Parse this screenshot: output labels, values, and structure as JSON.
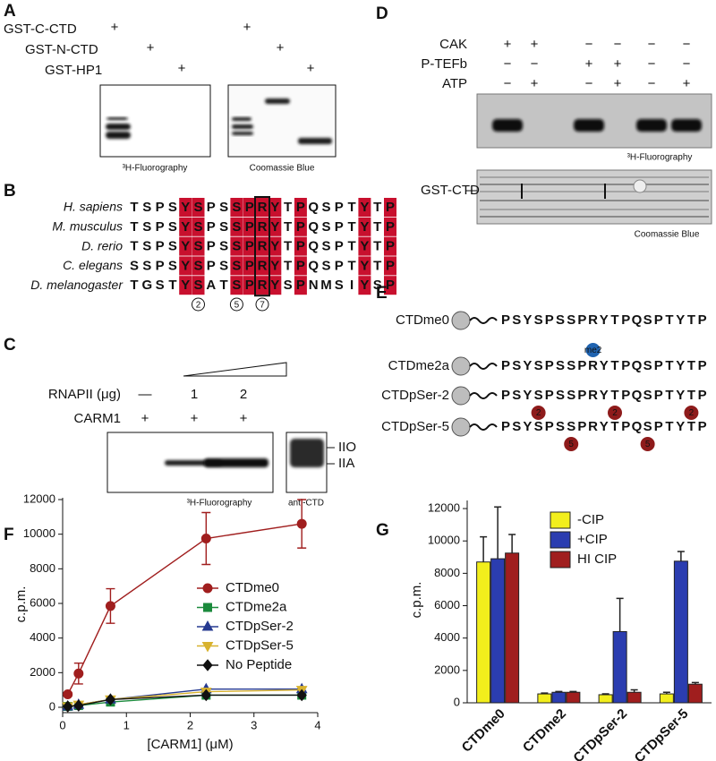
{
  "panel_a": {
    "label": "A",
    "rows": [
      "GST-C-CTD",
      "GST-N-CTD",
      "GST-HP1"
    ],
    "mark": "+",
    "captions": [
      "³H-Fluorography",
      "Coomassie Blue"
    ]
  },
  "panel_b": {
    "label": "B",
    "species": [
      "H. sapiens",
      "M. musculus",
      "D. rerio",
      "C. elegans",
      "D. melanogaster"
    ],
    "sequences": [
      "TSPSYSPSSPRYTPQSPTYTP",
      "TSPSYSPSSPRYTPQSPTYTP",
      "TSPSYSPSSPRYTPQSPTYTP",
      "SSPSYSPSSPRYTPQSPTYTP",
      "TGSTYSATSPRYSPNMSIYSP"
    ],
    "positions": [
      "2",
      "5",
      "7"
    ]
  },
  "panel_c": {
    "label": "C",
    "rows": [
      {
        "name": "RNAPII (μg)",
        "cells": [
          "—",
          "1",
          "2"
        ]
      },
      {
        "name": "CARM1",
        "cells": [
          "+",
          "+",
          "+"
        ]
      }
    ],
    "bands": [
      "IIO",
      "IIA"
    ],
    "captions": [
      "³H-Fluorography",
      "anti-CTD"
    ]
  },
  "panel_d": {
    "label": "D",
    "rows": [
      {
        "name": "CAK",
        "cells": [
          "+",
          "+",
          "−",
          "−",
          "−",
          "−"
        ]
      },
      {
        "name": "P-TEFb",
        "cells": [
          "−",
          "−",
          "+",
          "+",
          "−",
          "−"
        ]
      },
      {
        "name": "ATP",
        "cells": [
          "−",
          "+",
          "−",
          "+",
          "−",
          "+"
        ]
      }
    ],
    "band": "GST-CTD",
    "captions": [
      "³H-Fluorography",
      "Coomassie Blue"
    ]
  },
  "panel_e": {
    "label": "E",
    "constructs": [
      {
        "name": "CTDme0",
        "sequence": "PSYSPSSPRYTPQSPTYTP"
      },
      {
        "name": "CTDme2a",
        "sequence": "PSYSPSSPRYTPQSPTYTP",
        "marks": [
          "me2"
        ]
      },
      {
        "name": "CTDpSer-2",
        "sequence": "PSYSPSSPRYTPQSPTYTP",
        "marks": [
          "2",
          "2",
          "2"
        ]
      },
      {
        "name": "CTDpSer-5",
        "sequence": "PSYSPSSPRYTPQSPTYTP",
        "marks": [
          "5",
          "5"
        ]
      }
    ]
  },
  "chart_data": [
    {
      "type": "line",
      "panel_label": "F",
      "x_label": "[CARM1] (μM)",
      "y_label": "c.p.m.",
      "x": [
        0.08,
        0.25,
        0.75,
        2.25,
        3.75
      ],
      "xlim": [
        0,
        4
      ],
      "xticks": [
        0,
        1,
        2,
        3,
        4
      ],
      "ylim": [
        0,
        12000
      ],
      "yticks": [
        0,
        2000,
        4000,
        6000,
        8000,
        10000,
        12000
      ],
      "series": [
        {
          "name": "CTDme0",
          "color": "#a01e1e",
          "marker": "circle",
          "values": [
            750,
            1950,
            5850,
            9750,
            10600
          ],
          "errors": [
            100,
            600,
            1000,
            1500,
            1400
          ]
        },
        {
          "name": "CTDme2a",
          "color": "#1b8a3c",
          "marker": "square",
          "values": [
            50,
            100,
            300,
            700,
            700
          ]
        },
        {
          "name": "CTDpSer-2",
          "color": "#263a91",
          "marker": "triangle",
          "values": [
            50,
            150,
            450,
            1050,
            1050
          ]
        },
        {
          "name": "CTDpSer-5",
          "color": "#d8b22e",
          "marker": "triangle-down",
          "values": [
            50,
            150,
            450,
            900,
            1000
          ]
        },
        {
          "name": "No Peptide",
          "color": "#111111",
          "marker": "diamond",
          "values": [
            50,
            100,
            450,
            700,
            700
          ]
        }
      ]
    },
    {
      "type": "bar",
      "panel_label": "G",
      "y_label": "c.p.m.",
      "categories": [
        "CTDme0",
        "CTDme2",
        "CTDpSer-2",
        "CTDpSer-5"
      ],
      "ylim": [
        0,
        12500
      ],
      "yticks": [
        0,
        2000,
        4000,
        6000,
        8000,
        10000,
        12000
      ],
      "series": [
        {
          "name": "-CIP",
          "color": "#f2ee1c",
          "values": [
            8700,
            550,
            500,
            550
          ],
          "errors": [
            1550,
            50,
            50,
            100
          ]
        },
        {
          "name": "+CIP",
          "color": "#2b3db0",
          "values": [
            8900,
            650,
            4400,
            8750
          ],
          "errors": [
            3200,
            50,
            2050,
            600
          ]
        },
        {
          "name": "HI CIP",
          "color": "#a01e1e",
          "values": [
            9250,
            650,
            650,
            1150
          ],
          "errors": [
            1150,
            50,
            150,
            100
          ]
        }
      ]
    }
  ]
}
